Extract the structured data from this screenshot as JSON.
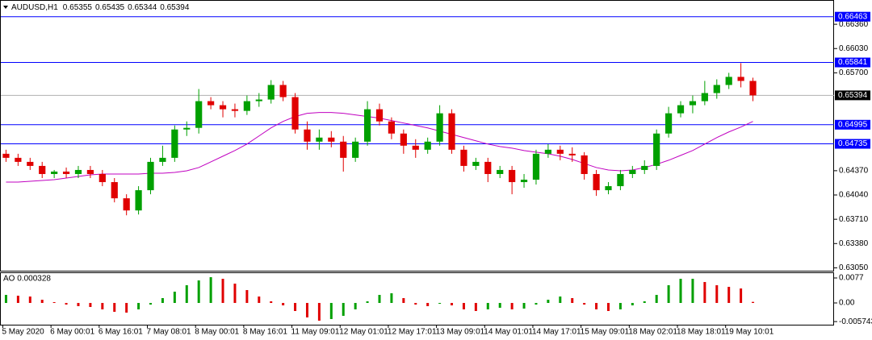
{
  "chart_data": [
    {
      "type": "candlestick",
      "title": "AUDUSD,H1",
      "quote": [
        0.65355,
        0.65435,
        0.65344,
        0.65394
      ],
      "up_color": "#00a000",
      "down_color": "#e00000",
      "categories": [
        "5 May 2020",
        null,
        null,
        null,
        "6 May 00:01",
        null,
        null,
        null,
        "6 May 16:01",
        null,
        null,
        null,
        "7 May 08:01",
        null,
        null,
        null,
        "8 May 00:01",
        null,
        null,
        null,
        "8 May 16:01",
        null,
        null,
        null,
        "11 May 09:01",
        null,
        null,
        null,
        "12 May 01:01",
        null,
        null,
        null,
        "12 May 17:01",
        null,
        null,
        null,
        "13 May 09:01",
        null,
        null,
        null,
        "14 May 01:01",
        null,
        null,
        null,
        "14 May 17:01",
        null,
        null,
        null,
        "15 May 09:01",
        null,
        null,
        null,
        "18 May 02:01",
        null,
        null,
        null,
        "18 May 18:01",
        null,
        null,
        null,
        "19 May 10:01",
        null,
        null
      ],
      "open": [
        0.646,
        0.64545,
        0.6449,
        0.64435,
        0.64325,
        0.64358,
        0.64325,
        0.6438,
        0.64325,
        0.64215,
        0.63995,
        0.6383,
        0.64105,
        0.6449,
        0.64545,
        0.6493,
        0.64952,
        0.65315,
        0.6526,
        0.65205,
        0.65183,
        0.65315,
        0.65337,
        0.65535,
        0.6537,
        0.6493,
        0.64765,
        0.6482,
        0.64765,
        0.64545,
        0.64765,
        0.65205,
        0.6504,
        0.64875,
        0.6471,
        0.64655,
        0.64765,
        0.6515,
        0.64655,
        0.64435,
        0.6449,
        0.64325,
        0.6438,
        0.64215,
        0.64248,
        0.646,
        0.64655,
        0.646,
        0.64578,
        0.64325,
        0.64105,
        0.6416,
        0.64325,
        0.6438,
        0.64435,
        0.64875,
        0.6515,
        0.6526,
        0.65315,
        0.65425,
        0.65535,
        0.65645,
        0.6559
      ],
      "high": [
        0.64655,
        0.646,
        0.64545,
        0.6449,
        0.6438,
        0.64413,
        0.64435,
        0.64435,
        0.6438,
        0.6427,
        0.6405,
        0.6416,
        0.64545,
        0.6471,
        0.64985,
        0.6504,
        0.6548,
        0.6537,
        0.65315,
        0.65282,
        0.65392,
        0.65425,
        0.65601,
        0.6559,
        0.65425,
        0.6504,
        0.6493,
        0.64908,
        0.64842,
        0.6482,
        0.65315,
        0.65282,
        0.65095,
        0.6493,
        0.64798,
        0.6482,
        0.6526,
        0.65205,
        0.6471,
        0.64545,
        0.64545,
        0.64435,
        0.64435,
        0.64325,
        0.64655,
        0.64732,
        0.6471,
        0.64688,
        0.64622,
        0.6438,
        0.64215,
        0.6438,
        0.64435,
        0.64512,
        0.6493,
        0.65238,
        0.65315,
        0.65392,
        0.6559,
        0.65612,
        0.657,
        0.65832,
        0.65634
      ],
      "low": [
        0.6449,
        0.64435,
        0.6438,
        0.6427,
        0.6427,
        0.6427,
        0.6427,
        0.6427,
        0.6416,
        0.6394,
        0.63764,
        0.63775,
        0.6405,
        0.64435,
        0.6449,
        0.64842,
        0.64875,
        0.65205,
        0.65095,
        0.65095,
        0.65128,
        0.65238,
        0.65282,
        0.65315,
        0.64875,
        0.64655,
        0.64655,
        0.64688,
        0.64358,
        0.6449,
        0.6471,
        0.64985,
        0.64798,
        0.646,
        0.64545,
        0.646,
        0.6471,
        0.646,
        0.64358,
        0.6438,
        0.64215,
        0.6427,
        0.6405,
        0.64138,
        0.64182,
        0.64545,
        0.64512,
        0.6449,
        0.64248,
        0.64028,
        0.6405,
        0.64105,
        0.6427,
        0.64325,
        0.6438,
        0.6482,
        0.65095,
        0.6515,
        0.6526,
        0.65348,
        0.6548,
        0.65502,
        0.65315
      ],
      "close": [
        0.64545,
        0.6449,
        0.64435,
        0.64325,
        0.64358,
        0.64325,
        0.6438,
        0.64325,
        0.64215,
        0.63995,
        0.6383,
        0.64105,
        0.6449,
        0.64545,
        0.6493,
        0.64952,
        0.65315,
        0.6526,
        0.65205,
        0.65183,
        0.65315,
        0.65337,
        0.65535,
        0.6537,
        0.6493,
        0.64765,
        0.6482,
        0.64765,
        0.64545,
        0.64765,
        0.65205,
        0.6504,
        0.64875,
        0.6471,
        0.64655,
        0.64765,
        0.6515,
        0.64655,
        0.64435,
        0.6449,
        0.64325,
        0.6438,
        0.64215,
        0.64248,
        0.646,
        0.64655,
        0.646,
        0.64578,
        0.64325,
        0.64105,
        0.6416,
        0.64325,
        0.6438,
        0.64435,
        0.64875,
        0.6515,
        0.6526,
        0.65315,
        0.65425,
        0.65535,
        0.65645,
        0.6559,
        0.65394
      ],
      "ma": {
        "color": "#c000c0",
        "values": [
          0.64215,
          0.64215,
          0.64226,
          0.64237,
          0.64248,
          0.6427,
          0.64292,
          0.64314,
          0.64325,
          0.64325,
          0.64325,
          0.64325,
          0.64336,
          0.64336,
          0.64347,
          0.64369,
          0.64413,
          0.6449,
          0.64567,
          0.64644,
          0.64732,
          0.64842,
          0.64952,
          0.6504,
          0.65106,
          0.6515,
          0.65161,
          0.65161,
          0.6515,
          0.65128,
          0.65106,
          0.65084,
          0.65051,
          0.65018,
          0.64985,
          0.64952,
          0.64908,
          0.64864,
          0.6482,
          0.64776,
          0.64732,
          0.64699,
          0.64677,
          0.64644,
          0.64622,
          0.646,
          0.64567,
          0.64523,
          0.64468,
          0.64413,
          0.6438,
          0.64369,
          0.6438,
          0.64413,
          0.64457,
          0.64512,
          0.64578,
          0.64644,
          0.64732,
          0.6482,
          0.64897,
          0.64963,
          0.6504
        ]
      },
      "levels": [
        0.66463,
        0.65841,
        0.64995,
        0.64735
      ],
      "level_color": "#0000ff",
      "ylim": [
        0.63,
        0.66635
      ],
      "yticks": [
        {
          "value": 0.6636,
          "label": "0.66360"
        },
        {
          "value": 0.6603,
          "label": "0.66030"
        },
        {
          "value": 0.657,
          "label": "0.65700"
        },
        {
          "value": 0.6437,
          "label": "0.64370"
        },
        {
          "value": 0.6404,
          "label": "0.64040"
        },
        {
          "value": 0.6371,
          "label": "0.63710"
        },
        {
          "value": 0.6338,
          "label": "0.63380"
        },
        {
          "value": 0.6305,
          "label": "0.63050"
        }
      ]
    },
    {
      "type": "bar",
      "title": "AO 0.000328",
      "up_color": "#00a000",
      "down_color": "#e00000",
      "values": [
        0.00248,
        0.00223,
        0.00198,
        0.00099,
        0.00025,
        -0.0005,
        -0.00099,
        -0.00124,
        -0.00198,
        -0.00273,
        -0.00298,
        -0.00198,
        -0.0005,
        0.00149,
        0.00347,
        0.00546,
        0.00694,
        0.00794,
        0.00744,
        0.00595,
        0.00397,
        0.00198,
        0.0005,
        -0.00074,
        -0.00248,
        -0.00446,
        -0.00546,
        -0.00496,
        -0.00397,
        -0.00198,
        0.0005,
        0.00248,
        0.00298,
        0.00149,
        -0.0005,
        -0.00099,
        -0.00025,
        -0.00074,
        -0.00198,
        -0.00248,
        -0.00198,
        -0.00149,
        -0.00198,
        -0.00174,
        -0.0005,
        0.00099,
        0.00198,
        0.00149,
        -0.0005,
        -0.00198,
        -0.00248,
        -0.00198,
        -0.00074,
        0.0005,
        0.00248,
        0.00546,
        0.00744,
        0.00744,
        0.00645,
        0.00546,
        0.00496,
        0.00446,
        0.000328
      ],
      "ylim": [
        -0.0067,
        0.00894
      ],
      "yticks": [
        0.0077,
        {
          "value": 0,
          "label": "0.00"
        },
        -0.005743
      ]
    }
  ]
}
